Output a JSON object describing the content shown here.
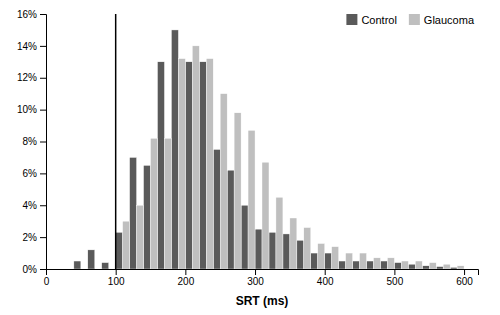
{
  "chart_data": {
    "type": "histogram",
    "xlabel": "SRT (ms)",
    "bins": [
      40,
      60,
      80,
      100,
      120,
      140,
      160,
      180,
      200,
      220,
      240,
      260,
      280,
      300,
      320,
      340,
      360,
      380,
      400,
      420,
      440,
      460,
      480,
      500,
      520,
      540,
      560,
      580,
      600
    ],
    "series": [
      {
        "name": "Control",
        "color": "#5a5a5a",
        "values": [
          0.5,
          1.2,
          0.4,
          2.3,
          7.0,
          6.5,
          13.0,
          15.0,
          13.0,
          13.0,
          7.5,
          6.2,
          4.0,
          2.5,
          2.3,
          2.2,
          1.8,
          1.0,
          1.0,
          0.5,
          0.5,
          0.5,
          0.5,
          0.4,
          0.3,
          0.2,
          0.15,
          0.1
        ]
      },
      {
        "name": "Glaucoma",
        "color": "#bfbfbf",
        "values": [
          0.0,
          0.0,
          0.0,
          3.0,
          4.0,
          8.2,
          8.2,
          13.2,
          14.0,
          13.2,
          11.0,
          9.8,
          8.7,
          6.7,
          4.5,
          3.2,
          2.6,
          1.6,
          1.4,
          1.0,
          1.0,
          0.7,
          0.7,
          0.5,
          0.5,
          0.4,
          0.3,
          0.2
        ]
      }
    ],
    "vline": {
      "x": 100,
      "color": "#000000"
    },
    "xlim": [
      0,
      620
    ],
    "xticks": [
      0,
      100,
      200,
      300,
      400,
      500,
      600
    ],
    "ylim": [
      0,
      16
    ],
    "yticks": [
      {
        "value": 0,
        "label": "0%"
      },
      {
        "value": 2,
        "label": "2%"
      },
      {
        "value": 4,
        "label": "4%"
      },
      {
        "value": 6,
        "label": "6%"
      },
      {
        "value": 8,
        "label": "8%"
      },
      {
        "value": 10,
        "label": "10%"
      },
      {
        "value": 12,
        "label": "12%"
      },
      {
        "value": 14,
        "label": "14%"
      },
      {
        "value": 16,
        "label": "16%"
      }
    ],
    "legend": "upper right"
  }
}
